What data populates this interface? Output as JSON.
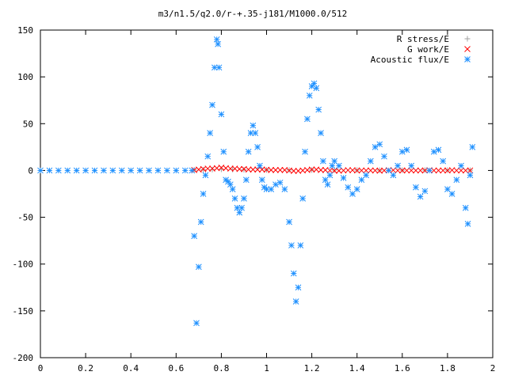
{
  "chart_data": {
    "type": "scatter",
    "title": "m3/n1.5/q2.0/r-+.35-j181/M1000.0/512",
    "xlim": [
      0,
      2
    ],
    "ylim": [
      -200,
      150
    ],
    "xticks": [
      0,
      0.2,
      0.4,
      0.6,
      0.8,
      1,
      1.2,
      1.4,
      1.6,
      1.8,
      2
    ],
    "xtick_labels": [
      "0",
      "0.2",
      "0.4",
      "0.6",
      "0.8",
      "1",
      "1.2",
      "1.4",
      "1.6",
      "1.8",
      "2"
    ],
    "yticks": [
      -200,
      -150,
      -100,
      -50,
      0,
      50,
      100,
      150
    ],
    "ytick_labels": [
      "-200",
      "-150",
      "-100",
      "-50",
      "0",
      "50",
      "100",
      "150"
    ],
    "legend_position": "top-right",
    "grid": false,
    "series": [
      {
        "name": "R stress/E",
        "marker": "+",
        "color": "#a0a0a0",
        "x": [
          0.68,
          0.72,
          0.76,
          0.8,
          0.85,
          0.9,
          1.0,
          1.1,
          1.2,
          1.3,
          1.4,
          1.5,
          1.6,
          1.7,
          1.8,
          1.9
        ],
        "y": [
          0.5,
          0.8,
          1.0,
          1.2,
          1.0,
          0.8,
          0.6,
          0.5,
          0.5,
          0.4,
          0.4,
          0.3,
          0.3,
          0.3,
          0.3,
          0.3
        ]
      },
      {
        "name": "G work/E",
        "marker": "x",
        "color": "#ff0000",
        "x": [
          0.68,
          0.7,
          0.72,
          0.74,
          0.76,
          0.78,
          0.8,
          0.82,
          0.84,
          0.86,
          0.88,
          0.9,
          0.92,
          0.94,
          0.96,
          0.98,
          1.0,
          1.02,
          1.04,
          1.06,
          1.08,
          1.1,
          1.12,
          1.14,
          1.16,
          1.18,
          1.2,
          1.22,
          1.24,
          1.26,
          1.28,
          1.3,
          1.32,
          1.34,
          1.36,
          1.38,
          1.4,
          1.42,
          1.44,
          1.46,
          1.48,
          1.5,
          1.52,
          1.54,
          1.56,
          1.58,
          1.6,
          1.62,
          1.64,
          1.66,
          1.68,
          1.7,
          1.72,
          1.74,
          1.76,
          1.78,
          1.8,
          1.82,
          1.84,
          1.86,
          1.88,
          1.9
        ],
        "y": [
          0.5,
          1.0,
          1.5,
          2.0,
          2.0,
          2.5,
          3.0,
          2.5,
          2.0,
          2.0,
          1.5,
          1.5,
          1.0,
          1.0,
          1.0,
          1.0,
          0.8,
          0.5,
          0.5,
          0.5,
          0.5,
          0.0,
          -0.5,
          -0.5,
          0.0,
          0.5,
          1.0,
          1.0,
          0.5,
          0.5,
          0.0,
          -0.3,
          -0.3,
          0.0,
          0.3,
          0.3,
          0.0,
          0.0,
          0.0,
          0.0,
          0.0,
          -0.3,
          0.0,
          0.3,
          0.3,
          0.0,
          0.0,
          0.0,
          0.0,
          0.0,
          0.0,
          0.0,
          0.3,
          0.0,
          0.0,
          0.0,
          0.0,
          0.3,
          0.0,
          0.0,
          0.0,
          0.0
        ]
      },
      {
        "name": "Acoustic flux/E",
        "marker": "*",
        "color": "#1e90ff",
        "x": [
          0.0,
          0.04,
          0.08,
          0.12,
          0.16,
          0.2,
          0.24,
          0.28,
          0.32,
          0.36,
          0.4,
          0.44,
          0.48,
          0.52,
          0.56,
          0.6,
          0.64,
          0.67,
          0.68,
          0.69,
          0.7,
          0.71,
          0.72,
          0.73,
          0.74,
          0.75,
          0.76,
          0.77,
          0.78,
          0.785,
          0.79,
          0.8,
          0.81,
          0.82,
          0.83,
          0.84,
          0.85,
          0.86,
          0.87,
          0.88,
          0.89,
          0.9,
          0.91,
          0.92,
          0.93,
          0.94,
          0.95,
          0.96,
          0.97,
          0.98,
          0.99,
          1.0,
          1.02,
          1.04,
          1.06,
          1.08,
          1.1,
          1.11,
          1.12,
          1.13,
          1.14,
          1.15,
          1.16,
          1.17,
          1.18,
          1.19,
          1.2,
          1.21,
          1.22,
          1.23,
          1.24,
          1.25,
          1.26,
          1.27,
          1.28,
          1.29,
          1.3,
          1.32,
          1.34,
          1.36,
          1.38,
          1.4,
          1.42,
          1.44,
          1.46,
          1.48,
          1.5,
          1.52,
          1.54,
          1.56,
          1.58,
          1.6,
          1.62,
          1.64,
          1.66,
          1.68,
          1.7,
          1.72,
          1.74,
          1.76,
          1.78,
          1.8,
          1.82,
          1.84,
          1.86,
          1.88,
          1.89,
          1.9,
          1.91
        ],
        "y": [
          0,
          0,
          0,
          0,
          0,
          0,
          0,
          0,
          0,
          0,
          0,
          0,
          0,
          0,
          0,
          0,
          0,
          0,
          -70,
          -163,
          -103,
          -55,
          -25,
          -5,
          15,
          40,
          70,
          110,
          140,
          135,
          110,
          60,
          20,
          -10,
          -12,
          -15,
          -20,
          -30,
          -40,
          -45,
          -40,
          -30,
          -10,
          20,
          40,
          48,
          40,
          25,
          5,
          -10,
          -18,
          -20,
          -20,
          -15,
          -13,
          -20,
          -55,
          -80,
          -110,
          -140,
          -125,
          -80,
          -30,
          20,
          55,
          80,
          90,
          93,
          88,
          65,
          40,
          10,
          -10,
          -15,
          -5,
          5,
          10,
          5,
          -8,
          -18,
          -25,
          -20,
          -10,
          -5,
          10,
          25,
          28,
          15,
          0,
          -5,
          5,
          20,
          22,
          5,
          -18,
          -28,
          -22,
          0,
          20,
          22,
          10,
          -20,
          -25,
          -10,
          5,
          -40,
          -57,
          -5,
          25
        ]
      }
    ]
  }
}
